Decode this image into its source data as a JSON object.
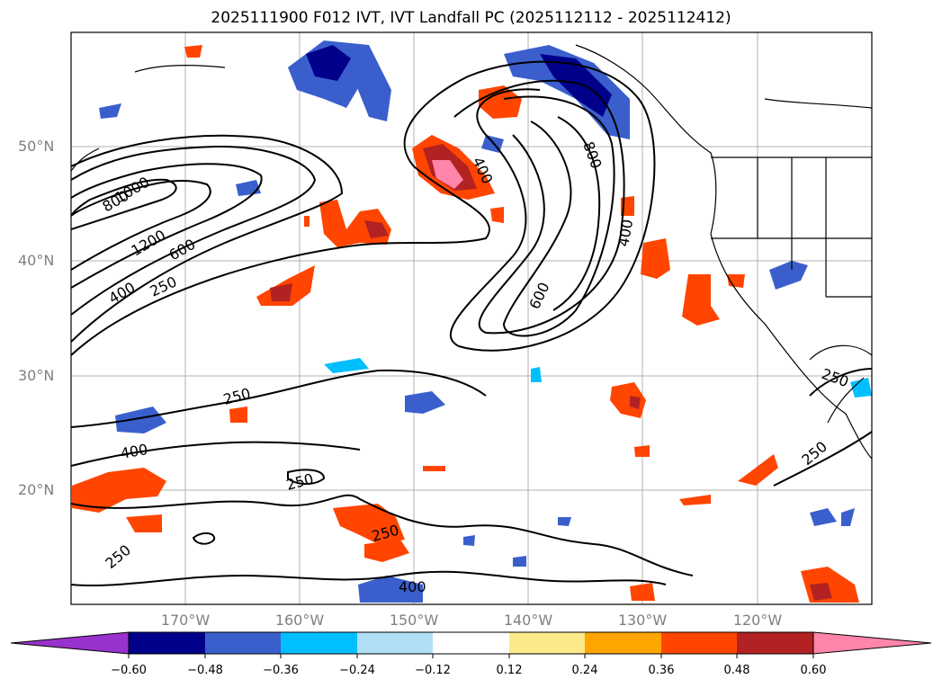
{
  "title": "2025111900 F012 IVT, IVT Landfall PC (2025112112 - 2025112412)",
  "lat_labels": [
    "50°N",
    "40°N",
    "30°N",
    "20°N"
  ],
  "lon_labels": [
    "170°W",
    "160°W",
    "150°W",
    "140°W",
    "130°W",
    "120°W"
  ],
  "contour_labels": [
    "800",
    "1000",
    "1200",
    "600",
    "400",
    "250",
    "400",
    "800",
    "400",
    "600",
    "250",
    "400",
    "250",
    "250",
    "400",
    "250",
    "250",
    "250"
  ],
  "colorbar": {
    "ticks": [
      "−0.60",
      "−0.48",
      "−0.36",
      "−0.24",
      "−0.12",
      "0.12",
      "0.24",
      "0.36",
      "0.48",
      "0.60"
    ],
    "colors": [
      "#9932cc",
      "#00008b",
      "#3a5fcd",
      "#00bfff",
      "#b0e0f6",
      "#ffffff",
      "#fce98a",
      "#ffa500",
      "#ff4500",
      "#b22222",
      "#ff85aa"
    ]
  }
}
